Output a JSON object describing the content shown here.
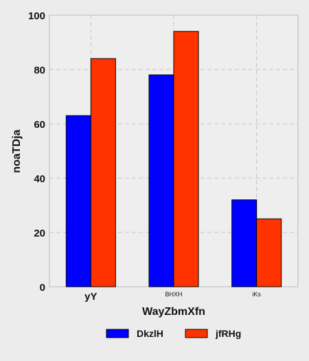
{
  "chart_data": {
    "type": "bar",
    "title": "",
    "xlabel": "WayZbmXfn",
    "ylabel": "noaTDja",
    "categories": [
      "yY",
      "BHXH",
      "iKs"
    ],
    "series": [
      {
        "name": "DkzlH",
        "values": [
          63,
          78,
          32
        ],
        "color": "#0000ff"
      },
      {
        "name": "jfRHg",
        "values": [
          84,
          94,
          25
        ],
        "color": "#ff3300"
      }
    ],
    "ylim": [
      0,
      100
    ],
    "yticks": [
      0,
      20,
      40,
      60,
      80,
      100
    ],
    "grid": true,
    "legend_position": "bottom-center",
    "plot_background": "#eeeeee",
    "page_background": "#ececec"
  }
}
